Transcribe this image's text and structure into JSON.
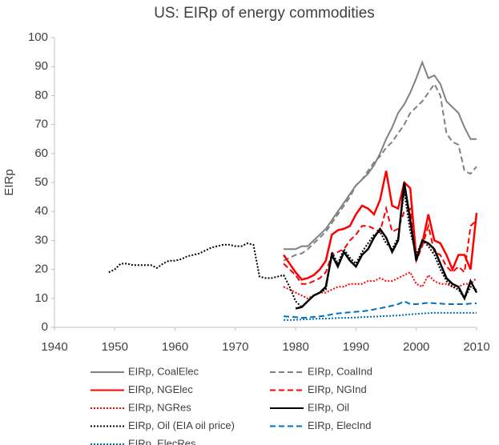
{
  "chart_data": {
    "type": "line",
    "title": "US: EIRp of energy commodities",
    "y_label": "EIRp",
    "xlim": [
      1940,
      2010
    ],
    "ylim": [
      0,
      100
    ],
    "xticks": [
      1940,
      1950,
      1960,
      1970,
      1980,
      1990,
      2000,
      2010
    ],
    "yticks": [
      0,
      10,
      20,
      30,
      40,
      50,
      60,
      70,
      80,
      90,
      100
    ],
    "grid": false,
    "legend": "bottom",
    "series": [
      {
        "name": "EIRp, CoalElec",
        "color": "#808080",
        "dash": "solid",
        "x": [
          1978,
          1979,
          1980,
          1981,
          1982,
          1983,
          1984,
          1985,
          1986,
          1987,
          1988,
          1989,
          1990,
          1991,
          1992,
          1993,
          1994,
          1995,
          1996,
          1997,
          1998,
          1999,
          2000,
          2001,
          2002,
          2003,
          2004,
          2005,
          2006,
          2007,
          2008,
          2009,
          2010
        ],
        "values": [
          27,
          27,
          27,
          28,
          28,
          30,
          32,
          34,
          37,
          40,
          43,
          46,
          49,
          51,
          53,
          56,
          60,
          65,
          69,
          74,
          77,
          81,
          86,
          91.5,
          86,
          87,
          84,
          78,
          76,
          74,
          69,
          65,
          65
        ]
      },
      {
        "name": "EIRp, CoalInd",
        "color": "#808080",
        "dash": "dashed",
        "x": [
          1978,
          1979,
          1980,
          1981,
          1982,
          1983,
          1984,
          1985,
          1986,
          1987,
          1988,
          1989,
          1990,
          1991,
          1992,
          1993,
          1994,
          1995,
          1996,
          1997,
          1998,
          1999,
          2000,
          2001,
          2002,
          2003,
          2004,
          2005,
          2006,
          2007,
          2008,
          2009,
          2010
        ],
        "values": [
          23,
          24,
          25,
          25.5,
          27,
          29,
          31,
          33,
          36,
          39,
          42,
          45,
          49,
          51,
          54,
          57,
          59,
          62,
          64,
          67,
          70,
          74,
          76,
          78,
          81,
          84,
          80,
          67,
          64,
          63,
          54,
          53,
          55.5
        ]
      },
      {
        "name": "EIRp, NGElec",
        "color": "#ff0000",
        "dash": "solid",
        "x": [
          1978,
          1979,
          1980,
          1981,
          1982,
          1983,
          1984,
          1985,
          1986,
          1987,
          1988,
          1989,
          1990,
          1991,
          1992,
          1993,
          1994,
          1995,
          1996,
          1997,
          1998,
          1999,
          2000,
          2001,
          2002,
          2003,
          2004,
          2005,
          2006,
          2007,
          2008,
          2009,
          2010
        ],
        "values": [
          25,
          22,
          19,
          16.5,
          17,
          18,
          20,
          23,
          32,
          33.5,
          34,
          35,
          39,
          42,
          41,
          39,
          44,
          54,
          42,
          41,
          50,
          48,
          24,
          29,
          39,
          30,
          29,
          25,
          20,
          25,
          25,
          20,
          39.5
        ]
      },
      {
        "name": "EIRp, NGInd",
        "color": "#ff0000",
        "dash": "dashed",
        "x": [
          1978,
          1979,
          1980,
          1981,
          1982,
          1983,
          1984,
          1985,
          1986,
          1987,
          1988,
          1989,
          1990,
          1991,
          1992,
          1993,
          1994,
          1995,
          1996,
          1997,
          1998,
          1999,
          2000,
          2001,
          2002,
          2003,
          2004,
          2005,
          2006,
          2007,
          2008,
          2009,
          2010
        ],
        "values": [
          22,
          20,
          18,
          15,
          15,
          16,
          17,
          19,
          25,
          26,
          27,
          30,
          32,
          35,
          35,
          34,
          33,
          41,
          33,
          34,
          40,
          41,
          23,
          28,
          35,
          26,
          25,
          21,
          19,
          21,
          19,
          35,
          37
        ]
      },
      {
        "name": "EIRp, NGRes",
        "color": "#ff0000",
        "dash": "dotted",
        "x": [
          1978,
          1979,
          1980,
          1981,
          1982,
          1983,
          1984,
          1985,
          1986,
          1987,
          1988,
          1989,
          1990,
          1991,
          1992,
          1993,
          1994,
          1995,
          1996,
          1997,
          1998,
          1999,
          2000,
          2001,
          2002,
          2003,
          2004,
          2005,
          2006,
          2007,
          2008,
          2009,
          2010
        ],
        "values": [
          14,
          13,
          12,
          11,
          10,
          11,
          12,
          12,
          13,
          14,
          14,
          15,
          15,
          15,
          16,
          16,
          17,
          16,
          16,
          17,
          18,
          19,
          15,
          14,
          18,
          16,
          15,
          15,
          14,
          14,
          15,
          15,
          17
        ]
      },
      {
        "name": "EIRp, Oil",
        "color": "#000000",
        "dash": "solid",
        "x": [
          1980,
          1981,
          1982,
          1983,
          1984,
          1985,
          1986,
          1987,
          1988,
          1989,
          1990,
          1991,
          1992,
          1993,
          1994,
          1995,
          1996,
          1997,
          1998,
          1999,
          2000,
          2001,
          2002,
          2003,
          2004,
          2005,
          2006,
          2007,
          2008,
          2009,
          2010
        ],
        "values": [
          6.5,
          7,
          9,
          11,
          12,
          14,
          25,
          21,
          26,
          23,
          21,
          25,
          27,
          31,
          34,
          31,
          26,
          30,
          50,
          37,
          23,
          30,
          29,
          27,
          22,
          17,
          15,
          14,
          10,
          16,
          12
        ]
      },
      {
        "name": "EIRp, Oil (EIA oil price)",
        "color": "#000000",
        "dash": "dotted",
        "x": [
          1949,
          1950,
          1951,
          1952,
          1953,
          1954,
          1955,
          1956,
          1957,
          1958,
          1959,
          1960,
          1961,
          1962,
          1963,
          1964,
          1965,
          1966,
          1967,
          1968,
          1969,
          1970,
          1971,
          1972,
          1973,
          1974,
          1975,
          1976,
          1977,
          1978,
          1979,
          1980,
          1981,
          1982,
          1983,
          1984,
          1985,
          1986,
          1987,
          1988,
          1989,
          1990,
          1991,
          1992,
          1993,
          1994,
          1995,
          1996,
          1997,
          1998,
          1999,
          2000,
          2001,
          2002,
          2003,
          2004,
          2005,
          2006,
          2007,
          2008,
          2009,
          2010
        ],
        "values": [
          19,
          20,
          22,
          22,
          21.5,
          21.5,
          21.5,
          21.5,
          20.5,
          22,
          23,
          23,
          23.5,
          24.5,
          25,
          25.5,
          26.5,
          27.5,
          28,
          28.5,
          28.5,
          28,
          28,
          29,
          28.5,
          17.5,
          17,
          17,
          17.5,
          18,
          14,
          9,
          7,
          9,
          11,
          12,
          13,
          26,
          22,
          27,
          24,
          22,
          26,
          29,
          32,
          33,
          29,
          27,
          31,
          47,
          33,
          25,
          30,
          28,
          25,
          20,
          16,
          14,
          13,
          10,
          14,
          13
        ]
      },
      {
        "name": "EIRp, ElecInd",
        "color": "#0070c0",
        "dash": "dashed",
        "x": [
          1978,
          1979,
          1980,
          1981,
          1982,
          1983,
          1984,
          1985,
          1986,
          1987,
          1988,
          1989,
          1990,
          1991,
          1992,
          1993,
          1994,
          1995,
          1996,
          1997,
          1998,
          1999,
          2000,
          2001,
          2002,
          2003,
          2004,
          2005,
          2006,
          2007,
          2008,
          2009,
          2010
        ],
        "values": [
          3.8,
          3.7,
          3.5,
          3.3,
          3.4,
          3.6,
          3.8,
          4,
          4.5,
          4.8,
          5,
          5.2,
          5.4,
          5.5,
          5.8,
          6.2,
          6.6,
          7,
          7.5,
          8,
          9,
          8,
          8,
          8.2,
          8.5,
          8.3,
          8.2,
          8,
          8,
          8,
          8,
          8.2,
          8.3
        ]
      },
      {
        "name": "EIRp, ElecRes",
        "color": "#0070c0",
        "dash": "dotted",
        "x": [
          1978,
          1979,
          1980,
          1981,
          1982,
          1983,
          1984,
          1985,
          1986,
          1987,
          1988,
          1989,
          1990,
          1991,
          1992,
          1993,
          1994,
          1995,
          1996,
          1997,
          1998,
          1999,
          2000,
          2001,
          2002,
          2003,
          2004,
          2005,
          2006,
          2007,
          2008,
          2009,
          2010
        ],
        "values": [
          2.5,
          2.5,
          2.6,
          2.7,
          2.8,
          2.9,
          3,
          3,
          3.1,
          3.2,
          3.3,
          3.3,
          3.4,
          3.5,
          3.6,
          3.7,
          3.8,
          3.9,
          4,
          4.1,
          4.3,
          4.5,
          4.6,
          4.8,
          4.9,
          5,
          5,
          5,
          5,
          5,
          5,
          5,
          5
        ]
      }
    ]
  }
}
